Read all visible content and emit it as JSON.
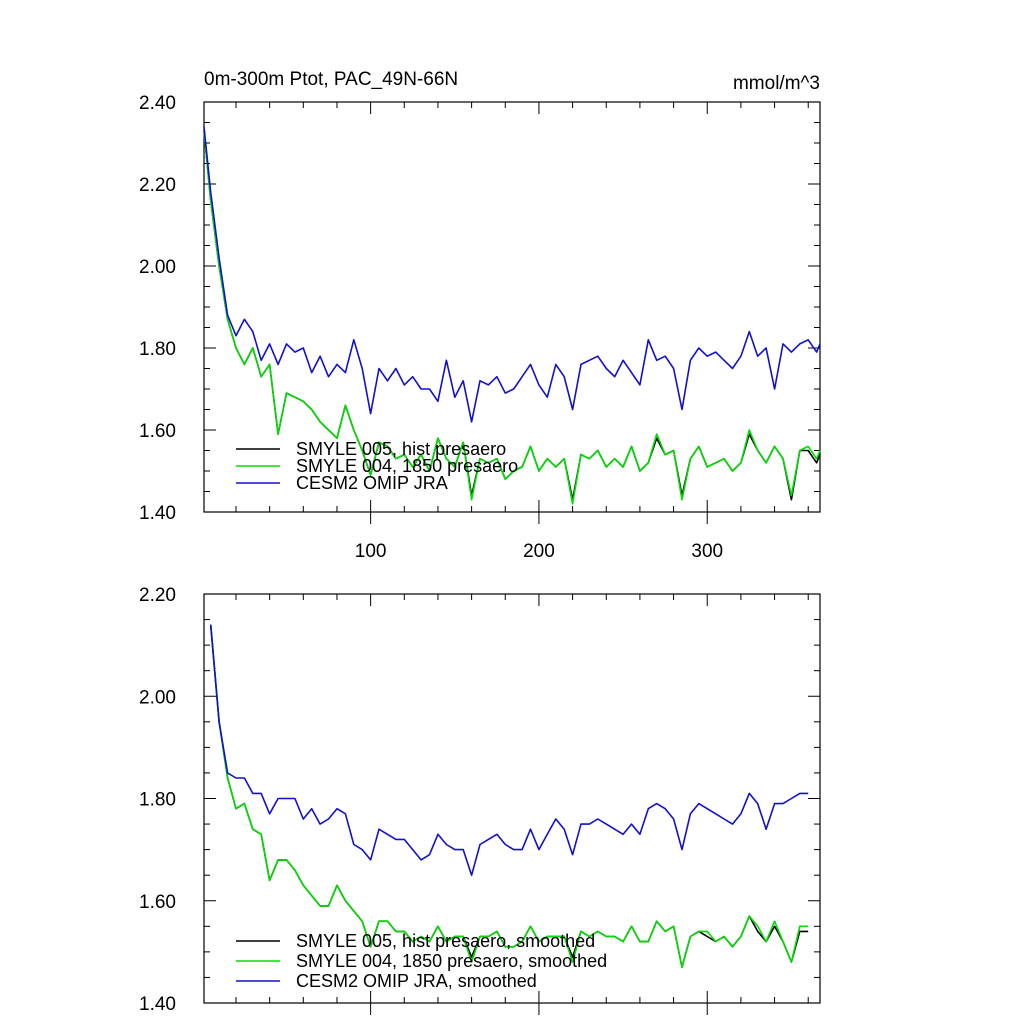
{
  "figure": {
    "title_left": "0m-300m Ptot, PAC_49N-66N",
    "title_right": "mmol/m^3"
  },
  "colors": {
    "hist": "#000000",
    "f1850": "#00dd00",
    "omip": "#1010d0",
    "axis": "#000000",
    "background": "#ffffff"
  },
  "chart_data": [
    {
      "type": "line",
      "title": "0m-300m Ptot, PAC_49N-66N",
      "units": "mmol/m^3",
      "xlim": [
        1,
        367
      ],
      "ylim": [
        1.4,
        2.4
      ],
      "x_ticks": [
        100,
        200,
        300
      ],
      "x_tick_labels": [
        "100",
        "200",
        "300"
      ],
      "y_ticks": [
        1.4,
        1.6,
        1.8,
        2.0,
        2.2,
        2.4
      ],
      "y_tick_labels": [
        "1.40",
        "1.60",
        "1.80",
        "2.00",
        "2.20",
        "2.40"
      ],
      "grid": false,
      "legend_position": "bottom-left",
      "x": [
        1,
        5,
        10,
        15,
        20,
        25,
        30,
        35,
        40,
        45,
        50,
        55,
        60,
        65,
        70,
        75,
        80,
        85,
        90,
        95,
        100,
        105,
        110,
        115,
        120,
        125,
        130,
        135,
        140,
        145,
        150,
        155,
        160,
        165,
        170,
        175,
        180,
        185,
        190,
        195,
        200,
        205,
        210,
        215,
        220,
        225,
        230,
        235,
        240,
        245,
        250,
        255,
        260,
        265,
        270,
        275,
        280,
        285,
        290,
        295,
        300,
        305,
        310,
        315,
        320,
        325,
        330,
        335,
        340,
        345,
        350,
        355,
        360,
        365,
        367
      ],
      "series": [
        {
          "name": "SMYLE 005, hist presaero",
          "color_key": "hist",
          "values": [
            2.33,
            2.16,
            2.0,
            1.87,
            1.8,
            1.76,
            1.8,
            1.73,
            1.76,
            1.59,
            1.69,
            1.68,
            1.67,
            1.65,
            1.62,
            1.6,
            1.58,
            1.66,
            1.6,
            1.55,
            1.49,
            1.57,
            1.56,
            1.53,
            1.54,
            1.51,
            1.54,
            1.5,
            1.58,
            1.53,
            1.51,
            1.57,
            1.44,
            1.53,
            1.52,
            1.53,
            1.48,
            1.5,
            1.51,
            1.56,
            1.5,
            1.53,
            1.51,
            1.53,
            1.43,
            1.54,
            1.53,
            1.55,
            1.51,
            1.53,
            1.51,
            1.56,
            1.5,
            1.52,
            1.58,
            1.54,
            1.55,
            1.44,
            1.53,
            1.56,
            1.51,
            1.52,
            1.53,
            1.5,
            1.52,
            1.59,
            1.55,
            1.52,
            1.56,
            1.53,
            1.43,
            1.55,
            1.55,
            1.52,
            1.54
          ]
        },
        {
          "name": "SMYLE 004, 1850 presaero",
          "color_key": "f1850",
          "values": [
            2.33,
            2.16,
            2.0,
            1.87,
            1.8,
            1.76,
            1.8,
            1.73,
            1.76,
            1.59,
            1.69,
            1.68,
            1.67,
            1.65,
            1.62,
            1.6,
            1.58,
            1.66,
            1.6,
            1.55,
            1.49,
            1.57,
            1.56,
            1.53,
            1.54,
            1.51,
            1.54,
            1.5,
            1.58,
            1.53,
            1.51,
            1.57,
            1.43,
            1.53,
            1.52,
            1.53,
            1.48,
            1.5,
            1.51,
            1.56,
            1.5,
            1.53,
            1.51,
            1.53,
            1.42,
            1.54,
            1.53,
            1.55,
            1.51,
            1.53,
            1.51,
            1.56,
            1.5,
            1.52,
            1.59,
            1.54,
            1.55,
            1.43,
            1.53,
            1.56,
            1.51,
            1.52,
            1.53,
            1.5,
            1.52,
            1.6,
            1.55,
            1.52,
            1.56,
            1.53,
            1.44,
            1.55,
            1.56,
            1.53,
            1.55
          ]
        },
        {
          "name": "CESM2 OMIP JRA",
          "color_key": "omip",
          "values": [
            2.34,
            2.18,
            2.02,
            1.88,
            1.83,
            1.87,
            1.84,
            1.77,
            1.81,
            1.76,
            1.81,
            1.79,
            1.8,
            1.74,
            1.78,
            1.73,
            1.76,
            1.74,
            1.82,
            1.75,
            1.64,
            1.75,
            1.72,
            1.75,
            1.71,
            1.73,
            1.7,
            1.7,
            1.67,
            1.77,
            1.68,
            1.72,
            1.62,
            1.72,
            1.71,
            1.73,
            1.69,
            1.7,
            1.73,
            1.76,
            1.71,
            1.68,
            1.76,
            1.73,
            1.65,
            1.76,
            1.77,
            1.78,
            1.75,
            1.73,
            1.77,
            1.74,
            1.71,
            1.82,
            1.77,
            1.78,
            1.75,
            1.65,
            1.77,
            1.8,
            1.78,
            1.79,
            1.77,
            1.75,
            1.78,
            1.84,
            1.78,
            1.8,
            1.7,
            1.81,
            1.79,
            1.81,
            1.82,
            1.79,
            1.81
          ]
        }
      ]
    },
    {
      "type": "line",
      "xlim": [
        1,
        367
      ],
      "ylim": [
        1.4,
        2.2
      ],
      "x_ticks": [
        100,
        200,
        300
      ],
      "x_tick_labels": [],
      "y_ticks": [
        1.4,
        1.6,
        1.8,
        2.0,
        2.2
      ],
      "y_tick_labels": [
        "1.40",
        "1.60",
        "1.80",
        "2.00",
        "2.20"
      ],
      "grid": false,
      "legend_position": "bottom-left",
      "x": [
        5,
        10,
        15,
        20,
        25,
        30,
        35,
        40,
        45,
        50,
        55,
        60,
        65,
        70,
        75,
        80,
        85,
        90,
        95,
        100,
        105,
        110,
        115,
        120,
        125,
        130,
        135,
        140,
        145,
        150,
        155,
        160,
        165,
        170,
        175,
        180,
        185,
        190,
        195,
        200,
        205,
        210,
        215,
        220,
        225,
        230,
        235,
        240,
        245,
        250,
        255,
        260,
        265,
        270,
        275,
        280,
        285,
        290,
        295,
        300,
        305,
        310,
        315,
        320,
        325,
        330,
        335,
        340,
        345,
        350,
        355,
        360
      ],
      "series": [
        {
          "name": "SMYLE 005, hist presaero, smoothed",
          "color_key": "hist",
          "values": [
            2.14,
            1.95,
            1.84,
            1.78,
            1.79,
            1.74,
            1.73,
            1.64,
            1.68,
            1.68,
            1.66,
            1.63,
            1.61,
            1.59,
            1.59,
            1.63,
            1.6,
            1.58,
            1.56,
            1.51,
            1.56,
            1.56,
            1.54,
            1.54,
            1.52,
            1.53,
            1.52,
            1.55,
            1.52,
            1.53,
            1.53,
            1.49,
            1.53,
            1.53,
            1.54,
            1.51,
            1.51,
            1.52,
            1.55,
            1.52,
            1.53,
            1.53,
            1.53,
            1.49,
            1.54,
            1.53,
            1.54,
            1.53,
            1.53,
            1.52,
            1.55,
            1.52,
            1.52,
            1.56,
            1.54,
            1.55,
            1.47,
            1.53,
            1.54,
            1.53,
            1.52,
            1.53,
            1.51,
            1.53,
            1.57,
            1.54,
            1.52,
            1.55,
            1.52,
            1.48,
            1.54,
            1.54
          ]
        },
        {
          "name": "SMYLE 004, 1850 presaero, smoothed",
          "color_key": "f1850",
          "values": [
            2.14,
            1.95,
            1.84,
            1.78,
            1.79,
            1.74,
            1.73,
            1.64,
            1.68,
            1.68,
            1.66,
            1.63,
            1.61,
            1.59,
            1.59,
            1.63,
            1.6,
            1.58,
            1.56,
            1.51,
            1.56,
            1.56,
            1.54,
            1.54,
            1.52,
            1.53,
            1.52,
            1.55,
            1.52,
            1.53,
            1.53,
            1.48,
            1.53,
            1.53,
            1.54,
            1.51,
            1.51,
            1.52,
            1.55,
            1.52,
            1.53,
            1.53,
            1.53,
            1.48,
            1.54,
            1.53,
            1.54,
            1.53,
            1.53,
            1.52,
            1.55,
            1.52,
            1.52,
            1.56,
            1.54,
            1.55,
            1.47,
            1.53,
            1.54,
            1.54,
            1.52,
            1.53,
            1.51,
            1.53,
            1.57,
            1.55,
            1.52,
            1.56,
            1.52,
            1.48,
            1.55,
            1.55
          ]
        },
        {
          "name": "CESM2 OMIP JRA, smoothed",
          "color_key": "omip",
          "values": [
            2.14,
            1.95,
            1.85,
            1.84,
            1.84,
            1.81,
            1.81,
            1.77,
            1.8,
            1.8,
            1.8,
            1.76,
            1.78,
            1.75,
            1.76,
            1.78,
            1.77,
            1.71,
            1.7,
            1.68,
            1.74,
            1.73,
            1.72,
            1.72,
            1.7,
            1.68,
            1.69,
            1.73,
            1.71,
            1.7,
            1.7,
            1.65,
            1.71,
            1.72,
            1.73,
            1.71,
            1.7,
            1.7,
            1.74,
            1.7,
            1.73,
            1.76,
            1.74,
            1.69,
            1.75,
            1.75,
            1.76,
            1.75,
            1.74,
            1.73,
            1.75,
            1.73,
            1.78,
            1.79,
            1.78,
            1.76,
            1.7,
            1.77,
            1.79,
            1.78,
            1.77,
            1.76,
            1.75,
            1.77,
            1.81,
            1.79,
            1.74,
            1.79,
            1.79,
            1.8,
            1.81,
            1.81
          ]
        }
      ]
    }
  ]
}
